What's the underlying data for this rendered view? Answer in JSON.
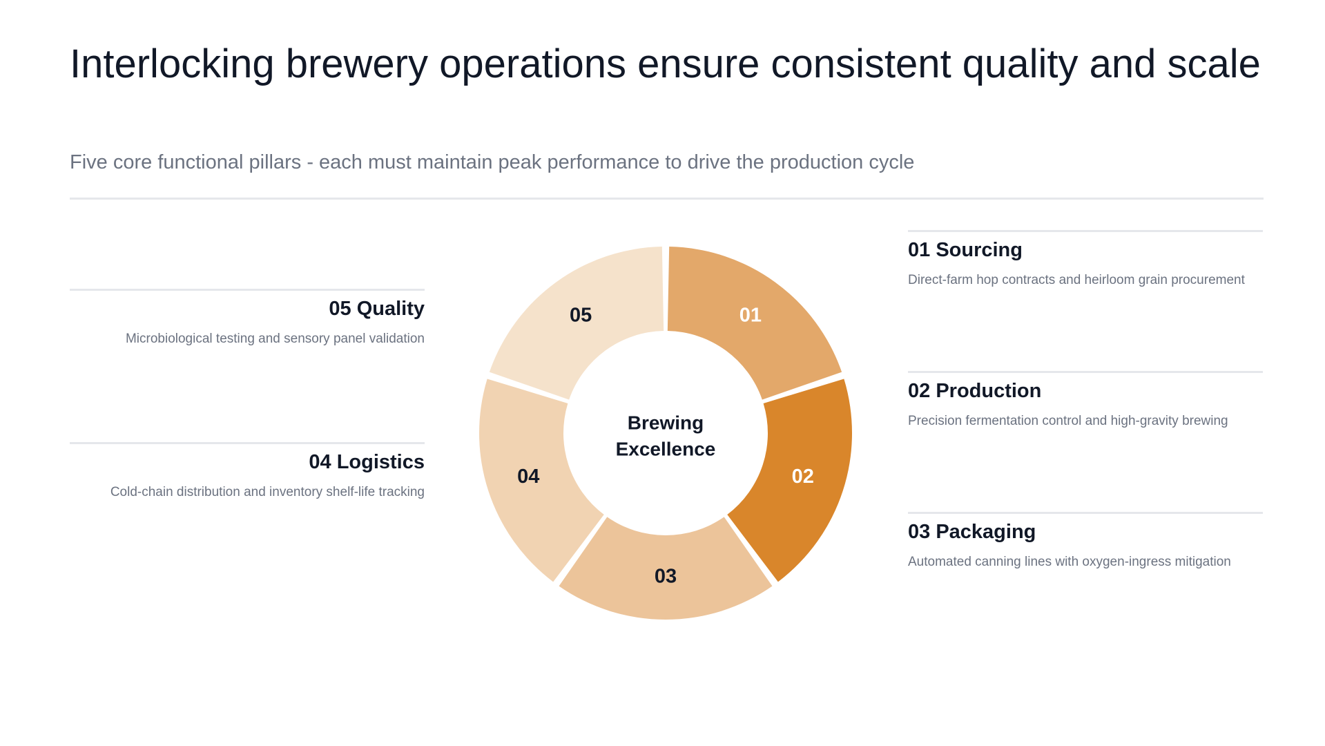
{
  "header": {
    "title": "Interlocking brewery operations ensure consistent quality and scale",
    "subtitle": "Five core functional pillars - each must maintain peak performance to drive the production cycle"
  },
  "diagram": {
    "center_lines": [
      "Brewing",
      "Excellence"
    ],
    "segments": [
      {
        "number": "01",
        "color": "#E3A86A",
        "label_color": "#FFFFFF"
      },
      {
        "number": "02",
        "color": "#D9862B",
        "label_color": "#FFFFFF"
      },
      {
        "number": "03",
        "color": "#ECC49A",
        "label_color": "#111827"
      },
      {
        "number": "04",
        "color": "#F1D3B2",
        "label_color": "#111827"
      },
      {
        "number": "05",
        "color": "#F5E2CB",
        "label_color": "#111827"
      }
    ]
  },
  "pillars": {
    "sourcing": {
      "title": "01 Sourcing",
      "description": "Direct-farm hop contracts and heirloom grain procurement"
    },
    "production": {
      "title": "02 Production",
      "description": "Precision fermentation control and high-gravity brewing"
    },
    "packaging": {
      "title": "03 Packaging",
      "description": "Automated canning lines with oxygen-ingress mitigation"
    },
    "logistics": {
      "title": "04 Logistics",
      "description": "Cold-chain distribution and inventory shelf-life tracking"
    },
    "quality": {
      "title": "05 Quality",
      "description": "Microbiological testing and sensory panel validation"
    }
  }
}
